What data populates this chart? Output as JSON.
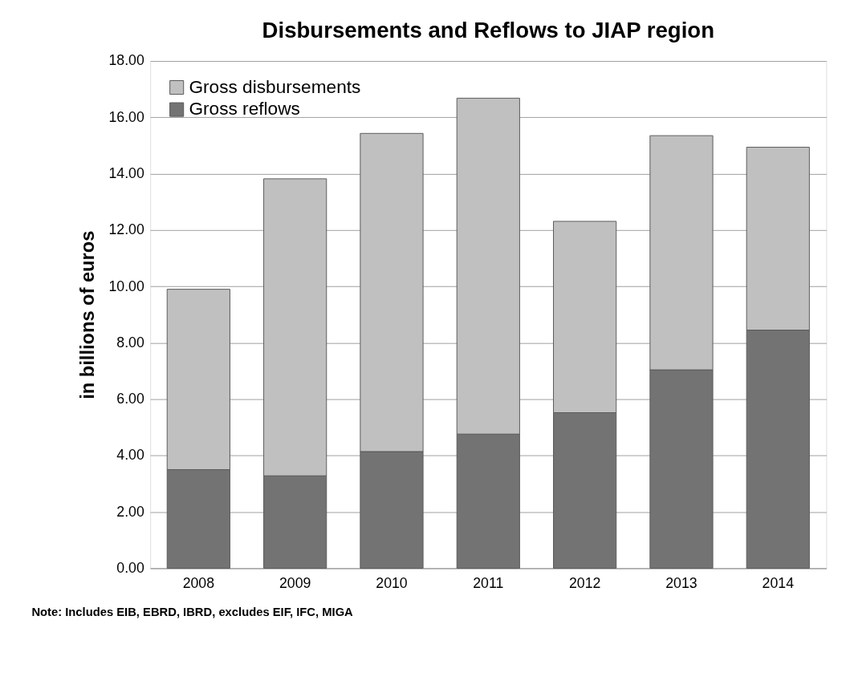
{
  "chart_data": {
    "type": "bar",
    "title": "Disbursements and Reflows to JIAP region",
    "ylabel": "in billions of euros",
    "categories": [
      "2008",
      "2009",
      "2010",
      "2011",
      "2012",
      "2013",
      "2014"
    ],
    "stacked": true,
    "series": [
      {
        "name": "Gross reflows",
        "color": "#737373",
        "values": [
          3.5,
          3.28,
          4.14,
          4.76,
          5.52,
          7.04,
          8.45
        ]
      },
      {
        "name": "Gross disbursements",
        "color": "#c0c0c0",
        "values": [
          6.4,
          10.54,
          11.29,
          11.92,
          6.79,
          8.31,
          6.49
        ]
      }
    ],
    "ylim": [
      0,
      18
    ],
    "yticks": [
      {
        "value": 0,
        "label": "0.00"
      },
      {
        "value": 2,
        "label": "2.00"
      },
      {
        "value": 4,
        "label": "4.00"
      },
      {
        "value": 6,
        "label": "6.00"
      },
      {
        "value": 8,
        "label": "8.00"
      },
      {
        "value": 10,
        "label": "10.00"
      },
      {
        "value": 12,
        "label": "12.00"
      },
      {
        "value": 14,
        "label": "14.00"
      },
      {
        "value": 16,
        "label": "16.00"
      },
      {
        "value": 18,
        "label": "18.00"
      }
    ],
    "grid": "y",
    "legend": "top left",
    "annotations": [
      "Note: Includes EIB, EBRD, IBRD, excludes EIF, IFC, MIGA"
    ]
  }
}
